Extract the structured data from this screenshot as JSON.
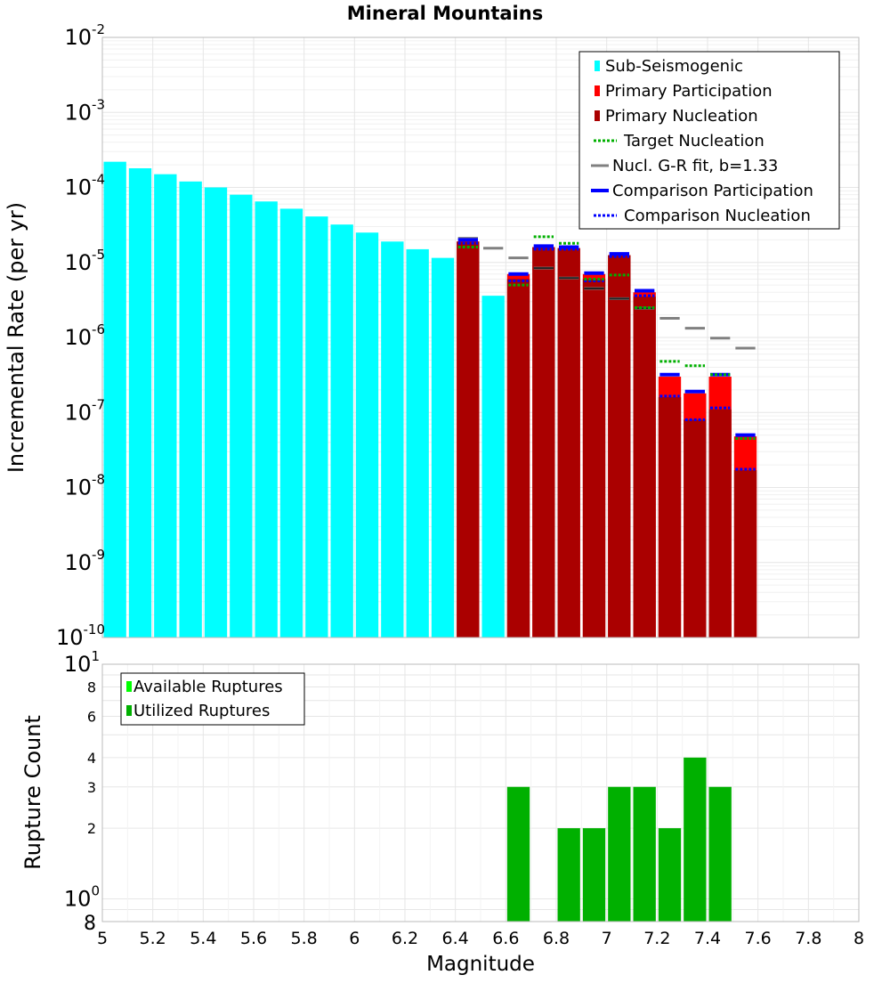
{
  "colors": {
    "sub": "#00ffff",
    "participation": "#ff0000",
    "nucleation": "#aa0000",
    "target": "#00b000",
    "gr": "#808080",
    "comp_part": "#0000ff",
    "comp_nucl": "#0000ff",
    "available": "#00ff00",
    "utilized": "#00b000",
    "grid": "#e6e6e6",
    "frame": "#bbbbbb"
  },
  "chart_data": [
    {
      "type": "bar",
      "title": "Mineral Mountains",
      "xlabel": "",
      "ylabel": "Incremental Rate (per yr)",
      "yscale": "log",
      "xlim": [
        5,
        8
      ],
      "ylim_exp": [
        -10,
        -2
      ],
      "y_ticks": [
        {
          "base": "10",
          "exp": "-2",
          "e": -2
        },
        {
          "base": "10",
          "exp": "-3",
          "e": -3
        },
        {
          "base": "10",
          "exp": "-4",
          "e": -4
        },
        {
          "base": "10",
          "exp": "-5",
          "e": -5
        },
        {
          "base": "10",
          "exp": "-6",
          "e": -6
        },
        {
          "base": "10",
          "exp": "-7",
          "e": -7
        },
        {
          "base": "10",
          "exp": "-8",
          "e": -8
        },
        {
          "base": "10",
          "exp": "-9",
          "e": -9
        },
        {
          "base": "10",
          "exp": "-10",
          "e": -10
        }
      ],
      "legend": [
        {
          "label": "Sub-Seismogenic",
          "key": "sub",
          "style": "bar"
        },
        {
          "label": "Primary Participation",
          "key": "participation",
          "style": "bar"
        },
        {
          "label": "Primary Nucleation",
          "key": "nucleation",
          "style": "bar"
        },
        {
          "label": "Target Nucleation",
          "key": "target",
          "style": "dotted"
        },
        {
          "label": "Nucl. G-R fit, b=1.33",
          "key": "gr",
          "style": "line"
        },
        {
          "label": "Comparison Participation",
          "key": "comp_part",
          "style": "thick"
        },
        {
          "label": "Comparison Nucleation",
          "key": "comp_nucl",
          "style": "dotted"
        }
      ],
      "sub_seismogenic": {
        "x": [
          5.05,
          5.15,
          5.25,
          5.35,
          5.45,
          5.55,
          5.65,
          5.75,
          5.85,
          5.95,
          6.05,
          6.15,
          6.25,
          6.35,
          6.55
        ],
        "values": [
          0.00022,
          0.00018,
          0.00015,
          0.00012,
          0.0001,
          8e-05,
          6.5e-05,
          5.2e-05,
          4.1e-05,
          3.2e-05,
          2.5e-05,
          1.9e-05,
          1.5e-05,
          1.15e-05,
          3.6e-06
        ]
      },
      "participation": {
        "x": [
          6.45,
          6.65,
          6.75,
          6.85,
          6.95,
          7.05,
          7.15,
          7.25,
          7.35,
          7.45,
          7.55
        ],
        "values": [
          1.9e-05,
          7e-06,
          1.6e-05,
          1.55e-05,
          7e-06,
          1.25e-05,
          4e-06,
          3e-07,
          1.8e-07,
          3e-07,
          4.8e-08
        ]
      },
      "nucleation": {
        "x": [
          6.45,
          6.65,
          6.75,
          6.85,
          6.95,
          7.05,
          7.15,
          7.25,
          7.35,
          7.45,
          7.55
        ],
        "values": [
          1.9e-05,
          6e-06,
          1.6e-05,
          1.55e-05,
          6e-06,
          1.25e-05,
          3.5e-06,
          1.6e-07,
          8e-08,
          1.1e-07,
          1.7e-08
        ]
      },
      "target_nucleation": {
        "x": [
          6.45,
          6.65,
          6.75,
          6.85,
          6.95,
          7.05,
          7.15,
          7.25,
          7.35,
          7.45,
          7.55
        ],
        "values": [
          1.6e-05,
          5e-06,
          2.2e-05,
          1.8e-05,
          6e-06,
          6.8e-06,
          2.5e-06,
          4.8e-07,
          4.2e-07,
          3.2e-07,
          4.5e-08
        ]
      },
      "gr_fit": {
        "x": [
          6.45,
          6.55,
          6.65,
          6.75,
          6.85,
          6.95,
          7.05,
          7.15,
          7.25,
          7.35,
          7.45,
          7.55
        ],
        "values": [
          2.1e-05,
          1.55e-05,
          1.15e-05,
          8.4e-06,
          6.2e-06,
          4.5e-06,
          3.3e-06,
          2.45e-06,
          1.8e-06,
          1.33e-06,
          9.8e-07,
          7.2e-07
        ]
      },
      "gr_fit_dark": {
        "x": [
          6.75,
          6.85,
          6.95,
          7.05,
          7.15
        ],
        "values": [
          8.4e-06,
          6.2e-06,
          4.5e-06,
          3.3e-06,
          2.45e-06
        ]
      },
      "comparison_participation": {
        "x": [
          6.45,
          6.65,
          6.75,
          6.85,
          6.95,
          7.05,
          7.15,
          7.25,
          7.35,
          7.45,
          7.55
        ],
        "values": [
          2e-05,
          7e-06,
          1.65e-05,
          1.6e-05,
          7.2e-06,
          1.3e-05,
          4.2e-06,
          3.2e-07,
          1.9e-07,
          3.2e-07,
          5e-08
        ]
      },
      "comparison_nucleation": {
        "x": [
          6.45,
          6.65,
          6.75,
          6.85,
          6.95,
          7.05,
          7.15,
          7.25,
          7.35,
          7.45,
          7.55
        ],
        "values": [
          1.8e-05,
          5.7e-06,
          1.5e-05,
          1.5e-05,
          5.7e-06,
          1.2e-05,
          3.6e-06,
          1.65e-07,
          8e-08,
          1.15e-07,
          1.75e-08
        ]
      }
    },
    {
      "type": "bar",
      "title": "",
      "xlabel": "Magnitude",
      "ylabel": "Rupture Count",
      "yscale": "log",
      "xlim": [
        5,
        8
      ],
      "x_ticks": [
        "5",
        "5.2",
        "5.4",
        "5.6",
        "5.8",
        "6",
        "6.2",
        "6.4",
        "6.6",
        "6.8",
        "7",
        "7.2",
        "7.4",
        "7.6",
        "7.8",
        "8"
      ],
      "ylim": [
        0.8,
        10
      ],
      "y_major_ticks": [
        {
          "base": "10",
          "exp": "1",
          "v": 10
        },
        {
          "base": "10",
          "exp": "0",
          "v": 1
        }
      ],
      "y_minor_ticks": [
        {
          "label": "8",
          "v": 8
        },
        {
          "label": "6",
          "v": 6
        },
        {
          "label": "4",
          "v": 4
        },
        {
          "label": "3",
          "v": 3
        },
        {
          "label": "2",
          "v": 2
        },
        {
          "label": "8",
          "v": 0.8
        }
      ],
      "legend": [
        {
          "label": "Available Ruptures",
          "key": "available"
        },
        {
          "label": "Utilized Ruptures",
          "key": "utilized"
        }
      ],
      "utilized": {
        "x": [
          6.65,
          6.85,
          6.95,
          7.05,
          7.15,
          7.25,
          7.35,
          7.45
        ],
        "values": [
          3,
          2,
          2,
          3,
          3,
          2,
          4,
          3
        ]
      }
    }
  ]
}
